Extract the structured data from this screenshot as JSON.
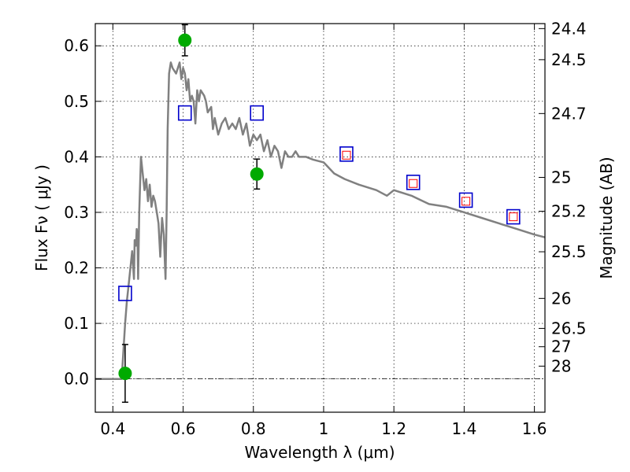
{
  "chart_data": {
    "type": "line",
    "xlabel": "Wavelength  λ (μm)",
    "ylabel": "Flux  Fν  ( μJy )",
    "y2label": "Magnitude (AB)",
    "xlim": [
      0.35,
      1.63
    ],
    "ylim": [
      -0.06,
      0.64
    ],
    "grid": true,
    "x_ticks": [
      {
        "value": 0.4,
        "label": "0.4"
      },
      {
        "value": 0.6,
        "label": "0.6"
      },
      {
        "value": 0.8,
        "label": "0.8"
      },
      {
        "value": 1.0,
        "label": "1"
      },
      {
        "value": 1.2,
        "label": "1.2"
      },
      {
        "value": 1.4,
        "label": "1.4"
      },
      {
        "value": 1.6,
        "label": "1.6"
      }
    ],
    "y_ticks": [
      {
        "value": 0.0,
        "label": "0.0"
      },
      {
        "value": 0.1,
        "label": "0.1"
      },
      {
        "value": 0.2,
        "label": "0.2"
      },
      {
        "value": 0.3,
        "label": "0.3"
      },
      {
        "value": 0.4,
        "label": "0.4"
      },
      {
        "value": 0.5,
        "label": "0.5"
      },
      {
        "value": 0.6,
        "label": "0.6"
      }
    ],
    "y2_ticks": [
      {
        "flux": 0.631,
        "label": "24.4"
      },
      {
        "flux": 0.575,
        "label": "24.5"
      },
      {
        "flux": 0.478,
        "label": "24.7"
      },
      {
        "flux": 0.363,
        "label": "25"
      },
      {
        "flux": 0.302,
        "label": "25.2"
      },
      {
        "flux": 0.229,
        "label": "25.5"
      },
      {
        "flux": 0.145,
        "label": "26"
      },
      {
        "flux": 0.091,
        "label": "26.5"
      },
      {
        "flux": 0.058,
        "label": "27"
      },
      {
        "flux": 0.023,
        "label": "28"
      }
    ],
    "series": [
      {
        "kind": "line",
        "color": "#808080",
        "x": [
          0.35,
          0.425,
          0.43,
          0.435,
          0.44,
          0.445,
          0.45,
          0.455,
          0.46,
          0.462,
          0.466,
          0.468,
          0.47,
          0.472,
          0.475,
          0.48,
          0.485,
          0.49,
          0.495,
          0.5,
          0.505,
          0.51,
          0.515,
          0.52,
          0.525,
          0.53,
          0.535,
          0.54,
          0.545,
          0.55,
          0.553,
          0.556,
          0.56,
          0.565,
          0.57,
          0.58,
          0.59,
          0.595,
          0.6,
          0.605,
          0.61,
          0.615,
          0.62,
          0.625,
          0.63,
          0.635,
          0.64,
          0.645,
          0.65,
          0.66,
          0.665,
          0.67,
          0.68,
          0.685,
          0.69,
          0.7,
          0.71,
          0.72,
          0.73,
          0.74,
          0.75,
          0.76,
          0.77,
          0.78,
          0.79,
          0.8,
          0.81,
          0.82,
          0.83,
          0.84,
          0.85,
          0.86,
          0.87,
          0.88,
          0.89,
          0.9,
          0.91,
          0.92,
          0.93,
          0.95,
          0.97,
          1.0,
          1.03,
          1.06,
          1.1,
          1.15,
          1.18,
          1.2,
          1.25,
          1.3,
          1.35,
          1.4,
          1.45,
          1.5,
          1.55,
          1.6,
          1.63
        ],
        "y": [
          0.0,
          0.0,
          0.05,
          0.1,
          0.14,
          0.17,
          0.2,
          0.23,
          0.18,
          0.25,
          0.24,
          0.27,
          0.26,
          0.18,
          0.3,
          0.4,
          0.37,
          0.34,
          0.36,
          0.32,
          0.35,
          0.31,
          0.33,
          0.32,
          0.3,
          0.28,
          0.22,
          0.29,
          0.26,
          0.18,
          0.3,
          0.45,
          0.55,
          0.57,
          0.56,
          0.55,
          0.57,
          0.54,
          0.56,
          0.55,
          0.52,
          0.54,
          0.5,
          0.51,
          0.5,
          0.46,
          0.52,
          0.5,
          0.52,
          0.51,
          0.5,
          0.48,
          0.49,
          0.45,
          0.47,
          0.44,
          0.46,
          0.47,
          0.45,
          0.46,
          0.45,
          0.47,
          0.44,
          0.46,
          0.42,
          0.44,
          0.43,
          0.44,
          0.41,
          0.43,
          0.4,
          0.42,
          0.41,
          0.38,
          0.41,
          0.4,
          0.4,
          0.41,
          0.4,
          0.4,
          0.395,
          0.39,
          0.37,
          0.36,
          0.35,
          0.34,
          0.33,
          0.34,
          0.33,
          0.315,
          0.31,
          0.3,
          0.29,
          0.28,
          0.27,
          0.26,
          0.255
        ]
      },
      {
        "kind": "open-squares",
        "color": "#0000cc",
        "x": [
          0.435,
          0.605,
          0.81,
          1.065,
          1.255,
          1.405,
          1.54
        ],
        "y": [
          0.154,
          0.479,
          0.479,
          0.405,
          0.354,
          0.322,
          0.292
        ]
      },
      {
        "kind": "open-squares-small",
        "color": "#ff0000",
        "x": [
          1.065,
          1.255,
          1.405,
          1.54
        ],
        "y": [
          0.403,
          0.352,
          0.32,
          0.292
        ]
      },
      {
        "kind": "points-with-errors",
        "color": "#00aa00",
        "x": [
          0.435,
          0.605,
          0.81
        ],
        "y": [
          0.01,
          0.61,
          0.369
        ],
        "yerr": [
          0.052,
          0.028,
          0.027
        ]
      }
    ]
  }
}
